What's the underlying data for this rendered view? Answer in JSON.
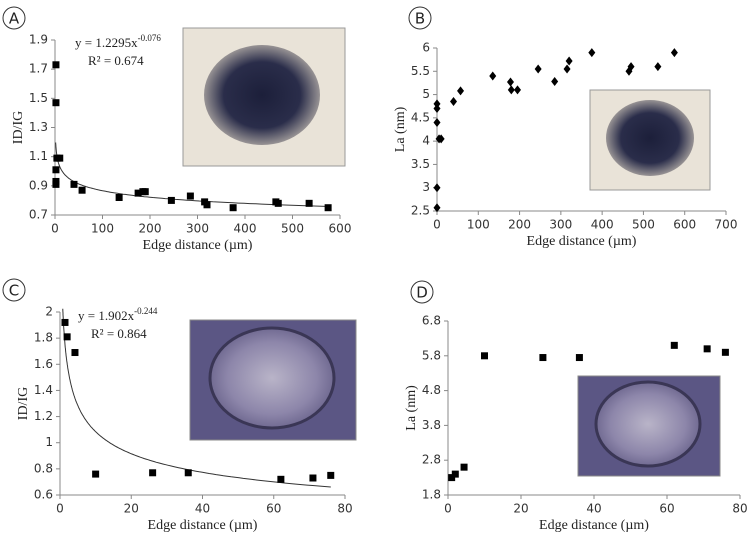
{
  "chart_data": [
    {
      "type": "scatter",
      "panel_label": "A",
      "x_label": "Edge distance (µm)",
      "y_label": "ID/IG",
      "x": [
        2,
        2,
        2,
        2,
        2,
        4,
        10,
        40,
        57,
        135,
        175,
        185,
        190,
        245,
        285,
        315,
        320,
        375,
        465,
        470,
        535,
        575
      ],
      "values": [
        1.73,
        1.47,
        1.01,
        0.93,
        0.91,
        1.09,
        1.09,
        0.91,
        0.87,
        0.82,
        0.85,
        0.86,
        0.86,
        0.8,
        0.83,
        0.79,
        0.77,
        0.75,
        0.79,
        0.78,
        0.78,
        0.75
      ],
      "color": "#000000",
      "marker": "square",
      "xlim": [
        0,
        600
      ],
      "xticks": [
        0,
        100,
        200,
        300,
        400,
        500,
        600
      ],
      "ylim": [
        0.7,
        1.9
      ],
      "yticks": [
        0.7,
        0.9,
        1.1,
        1.3,
        1.5,
        1.7,
        1.9
      ],
      "trendline": {
        "a": 1.2295,
        "b": -0.076,
        "equation": "y = 1.2295x",
        "exponent": "-0.076",
        "r2": "R² = 0.674"
      }
    },
    {
      "type": "scatter",
      "panel_label": "B",
      "x_label": "Edge distance (µm)",
      "y_label": "La (nm)",
      "x": [
        0,
        0,
        0,
        0,
        0,
        5,
        10,
        40,
        57,
        135,
        178,
        180,
        195,
        245,
        285,
        315,
        320,
        375,
        465,
        470,
        535,
        575
      ],
      "values": [
        2.57,
        3.0,
        4.4,
        4.7,
        4.8,
        4.05,
        4.05,
        4.85,
        5.08,
        5.4,
        5.27,
        5.1,
        5.1,
        5.55,
        5.28,
        5.55,
        5.72,
        5.9,
        5.5,
        5.6,
        5.6,
        5.9
      ],
      "color": "#000000",
      "marker": "diamond",
      "xlim": [
        0,
        700
      ],
      "xticks": [
        0,
        100,
        200,
        300,
        400,
        500,
        600,
        700
      ],
      "ylim": [
        2.5,
        6
      ],
      "yticks": [
        2.5,
        3,
        3.5,
        4,
        4.5,
        5,
        5.5,
        6
      ]
    },
    {
      "type": "scatter",
      "panel_label": "C",
      "x_label": "Edge distance (µm)",
      "y_label": "ID/IG",
      "x": [
        1.4,
        2,
        4.2,
        10,
        26,
        36,
        62,
        71,
        76
      ],
      "values": [
        1.92,
        1.81,
        1.69,
        0.76,
        0.77,
        0.77,
        0.72,
        0.73,
        0.75
      ],
      "color": "#000000",
      "marker": "square",
      "xlim": [
        0,
        80
      ],
      "xticks": [
        0,
        20,
        40,
        60,
        80
      ],
      "ylim": [
        0.6,
        2
      ],
      "yticks": [
        0.6,
        0.8,
        1,
        1.2,
        1.4,
        1.6,
        1.8,
        2
      ],
      "trendline": {
        "a": 1.902,
        "b": -0.244,
        "equation": "y = 1.902x",
        "exponent": "-0.244",
        "r2": "R² = 0.864"
      }
    },
    {
      "type": "scatter",
      "panel_label": "D",
      "x_label": "Edge distance (µm)",
      "y_label": "La (nm)",
      "x": [
        1,
        2,
        4.4,
        10,
        26,
        36,
        62,
        71,
        76
      ],
      "values": [
        2.3,
        2.4,
        2.6,
        5.8,
        5.75,
        5.75,
        6.1,
        6.0,
        5.9
      ],
      "color": "#000000",
      "marker": "square",
      "xlim": [
        0,
        80
      ],
      "xticks": [
        0,
        20,
        40,
        60,
        80
      ],
      "ylim": [
        1.8,
        6.8
      ],
      "yticks": [
        1.8,
        2.8,
        3.8,
        4.8,
        5.8,
        6.8
      ]
    }
  ]
}
